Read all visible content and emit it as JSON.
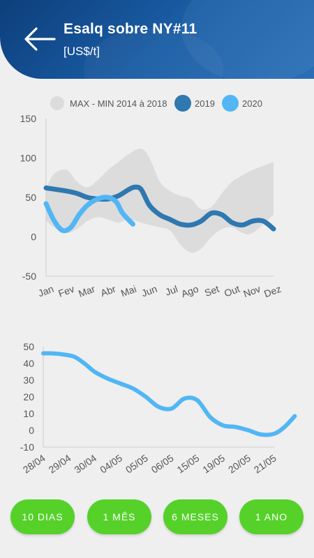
{
  "header": {
    "title": "Esalq sobre NY#11",
    "subtitle": "[US$/t]"
  },
  "colors": {
    "range": "#dcdcdc",
    "series_2019": "#2f78b0",
    "series_2020": "#52b6f5",
    "button": "#55d12a"
  },
  "chart_data": [
    {
      "type": "line",
      "categories": [
        "Jan",
        "Fev",
        "Mar",
        "Abr",
        "Mai",
        "Jun",
        "Jul",
        "Ago",
        "Set",
        "Out",
        "Nov",
        "Dez"
      ],
      "ylim": [
        -50,
        150
      ],
      "yticks": [
        150,
        100,
        50,
        0,
        -50
      ],
      "legend": {
        "position": "top",
        "items": [
          {
            "label": "MAX - MIN 2014 à 2018",
            "color": "#dcdcdc"
          },
          {
            "label": "2019",
            "color": "#2f78b0"
          },
          {
            "label": "2020",
            "color": "#52b6f5"
          }
        ]
      },
      "band": {
        "name": "MAX - MIN 2014 à 2018",
        "x": [
          0,
          0.4,
          1,
          1.5,
          2,
          2.5,
          3,
          3.5,
          4,
          4.6,
          5,
          5.5,
          6,
          6.5,
          7,
          7.5,
          8,
          8.5,
          9,
          9.5,
          10,
          11
        ],
        "max": [
          62,
          80,
          85,
          70,
          63,
          72,
          85,
          95,
          105,
          112,
          100,
          70,
          58,
          52,
          48,
          35,
          38,
          55,
          70,
          78,
          85,
          95
        ],
        "min": [
          20,
          12,
          5,
          10,
          20,
          25,
          22,
          18,
          22,
          18,
          15,
          12,
          8,
          -10,
          -20,
          -15,
          0,
          10,
          12,
          5,
          5,
          28
        ]
      },
      "series": [
        {
          "name": "2019",
          "x": [
            0,
            1,
            1.5,
            2,
            2.5,
            3,
            3.5,
            4,
            4.3,
            4.6,
            5,
            5.5,
            6,
            6.5,
            7,
            7.5,
            8,
            8.5,
            9,
            9.5,
            10,
            10.5,
            11
          ],
          "values": [
            62,
            58,
            55,
            50,
            48,
            48,
            52,
            60,
            63,
            60,
            40,
            28,
            22,
            16,
            15,
            20,
            30,
            28,
            18,
            15,
            20,
            20,
            10
          ]
        },
        {
          "name": "2020",
          "x": [
            0,
            0.4,
            0.8,
            1.2,
            1.6,
            2,
            2.5,
            3,
            3.4,
            3.7,
            4.2
          ],
          "values": [
            42,
            20,
            8,
            12,
            28,
            40,
            48,
            50,
            44,
            30,
            16
          ]
        }
      ]
    },
    {
      "type": "line",
      "categories": [
        "28/04",
        "29/04",
        "30/04",
        "04/05",
        "05/05",
        "06/05",
        "15/05",
        "19/05",
        "20/05",
        "21/05"
      ],
      "ylim": [
        -10,
        50
      ],
      "yticks": [
        50,
        40,
        30,
        20,
        10,
        0,
        -10
      ],
      "series": [
        {
          "x": [
            0,
            0.3,
            0.7,
            1.2,
            1.6,
            2,
            2.5,
            3,
            3.5,
            4,
            4.5,
            5,
            5.5,
            6,
            6.5,
            7,
            7.5,
            8,
            8.5,
            9,
            9.4,
            9.8
          ],
          "values": [
            46,
            46,
            45.5,
            44,
            40,
            35,
            31,
            28,
            25,
            20,
            14,
            13,
            19,
            18,
            8,
            3,
            2,
            0,
            -2.5,
            -2,
            2,
            8.5
          ]
        }
      ]
    }
  ],
  "buttons": [
    {
      "label": "10 DIAS"
    },
    {
      "label": "1 MÊS"
    },
    {
      "label": "6 MESES"
    },
    {
      "label": "1 ANO"
    }
  ]
}
